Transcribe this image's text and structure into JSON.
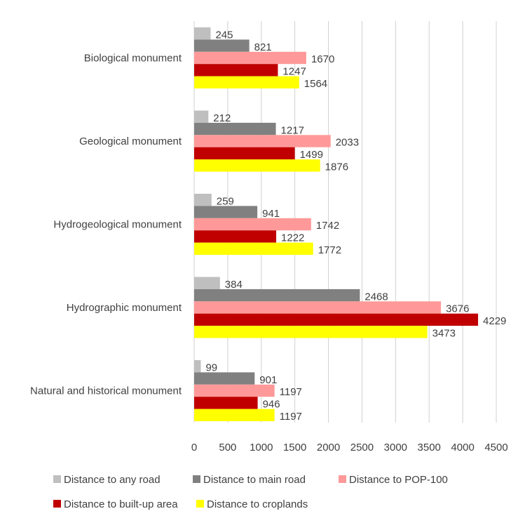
{
  "chart_data": {
    "type": "bar",
    "orientation": "horizontal",
    "categories": [
      "Biological monument",
      "Geological monument",
      "Hydrogeological monument",
      "Hydrographic monument",
      "Natural and historical monument"
    ],
    "series": [
      {
        "name": "Distance to any road",
        "color": "#bfbfbf",
        "values": [
          245,
          212,
          259,
          384,
          99
        ]
      },
      {
        "name": "Distance to main road",
        "color": "#808080",
        "values": [
          821,
          1217,
          941,
          2468,
          901
        ]
      },
      {
        "name": "Distance to POP-100",
        "color": "#ff9999",
        "values": [
          1670,
          2033,
          1742,
          3676,
          1197
        ]
      },
      {
        "name": "Distance to built-up area",
        "color": "#c00000",
        "values": [
          1247,
          1499,
          1222,
          4229,
          946
        ]
      },
      {
        "name": "Distance to croplands",
        "color": "#ffff00",
        "values": [
          1564,
          1876,
          1772,
          3473,
          1197
        ]
      }
    ],
    "xlim": [
      0,
      4500
    ],
    "x_ticks": [
      0,
      500,
      1000,
      1500,
      2000,
      2500,
      3000,
      3500,
      4000,
      4500
    ],
    "x_tick_labels": [
      "0",
      "500",
      "1000",
      "1500",
      "2000",
      "2500",
      "3000",
      "3500",
      "4000",
      "4500"
    ],
    "grid": "vertical",
    "legend_position": "bottom",
    "data_labels": true,
    "title": "",
    "xlabel": "",
    "ylabel": ""
  }
}
